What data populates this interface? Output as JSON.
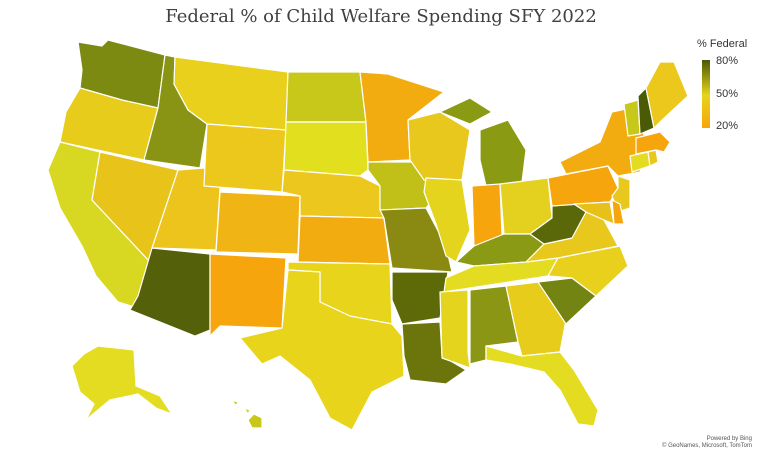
{
  "title": "Federal % of Child Welfare Spending SFY 2022",
  "legend": {
    "title": "% Federal",
    "max_label": "80%",
    "mid_label": "50%",
    "min_label": "20%",
    "colors": {
      "high": "#4a5a05",
      "mid": "#e8d41a",
      "low": "#f6a50c"
    }
  },
  "attribution": {
    "line1": "Powered by Bing",
    "line2": "© GeoNames, Microsoft, TomTom"
  },
  "states": [
    {
      "id": "WA",
      "color": "#7d8a12"
    },
    {
      "id": "OR",
      "color": "#e8cc1c"
    },
    {
      "id": "CA",
      "color": "#d8d822"
    },
    {
      "id": "ID",
      "color": "#8a9414"
    },
    {
      "id": "NV",
      "color": "#e8c41a"
    },
    {
      "id": "AZ",
      "color": "#55600a"
    },
    {
      "id": "UT",
      "color": "#ecc41c"
    },
    {
      "id": "MT",
      "color": "#e8d01c"
    },
    {
      "id": "WY",
      "color": "#ecc81c"
    },
    {
      "id": "CO",
      "color": "#f0b414"
    },
    {
      "id": "NM",
      "color": "#f6a50c"
    },
    {
      "id": "ND",
      "color": "#c8c81a"
    },
    {
      "id": "SD",
      "color": "#e2e01e"
    },
    {
      "id": "NE",
      "color": "#ecc81e"
    },
    {
      "id": "KS",
      "color": "#f2ac10"
    },
    {
      "id": "OK",
      "color": "#e8d41a"
    },
    {
      "id": "TX",
      "color": "#e8d41a"
    },
    {
      "id": "MN",
      "color": "#f3ac10"
    },
    {
      "id": "IA",
      "color": "#c0c018"
    },
    {
      "id": "MO",
      "color": "#8a8a12"
    },
    {
      "id": "AR",
      "color": "#5e6a08"
    },
    {
      "id": "LA",
      "color": "#6c740c"
    },
    {
      "id": "WI",
      "color": "#e8c81c"
    },
    {
      "id": "IL",
      "color": "#e4d41e"
    },
    {
      "id": "MI",
      "color": "#8a9a12"
    },
    {
      "id": "IN",
      "color": "#f6a50c"
    },
    {
      "id": "OH",
      "color": "#e4d01e"
    },
    {
      "id": "KY",
      "color": "#8a9a14"
    },
    {
      "id": "TN",
      "color": "#e4dc20"
    },
    {
      "id": "MS",
      "color": "#e4d41e"
    },
    {
      "id": "AL",
      "color": "#8a9614"
    },
    {
      "id": "GA",
      "color": "#e8cc1c"
    },
    {
      "id": "FL",
      "color": "#e4dc20"
    },
    {
      "id": "SC",
      "color": "#748412"
    },
    {
      "id": "NC",
      "color": "#e8d01c"
    },
    {
      "id": "VA",
      "color": "#e8c81c"
    },
    {
      "id": "WV",
      "color": "#5a680a"
    },
    {
      "id": "PA",
      "color": "#f6a50c"
    },
    {
      "id": "NY",
      "color": "#f2ac10"
    },
    {
      "id": "NJ",
      "color": "#e8c81c"
    },
    {
      "id": "DE",
      "color": "#f6a50c"
    },
    {
      "id": "MD",
      "color": "#e8c01a"
    },
    {
      "id": "CT",
      "color": "#e4dc20"
    },
    {
      "id": "RI",
      "color": "#e8c81c"
    },
    {
      "id": "MA",
      "color": "#f6a50c"
    },
    {
      "id": "VT",
      "color": "#c8c81a"
    },
    {
      "id": "NH",
      "color": "#4a5a05"
    },
    {
      "id": "ME",
      "color": "#ecc81c"
    },
    {
      "id": "AK",
      "color": "#e4dc20"
    },
    {
      "id": "HI",
      "color": "#c8c81a"
    }
  ]
}
